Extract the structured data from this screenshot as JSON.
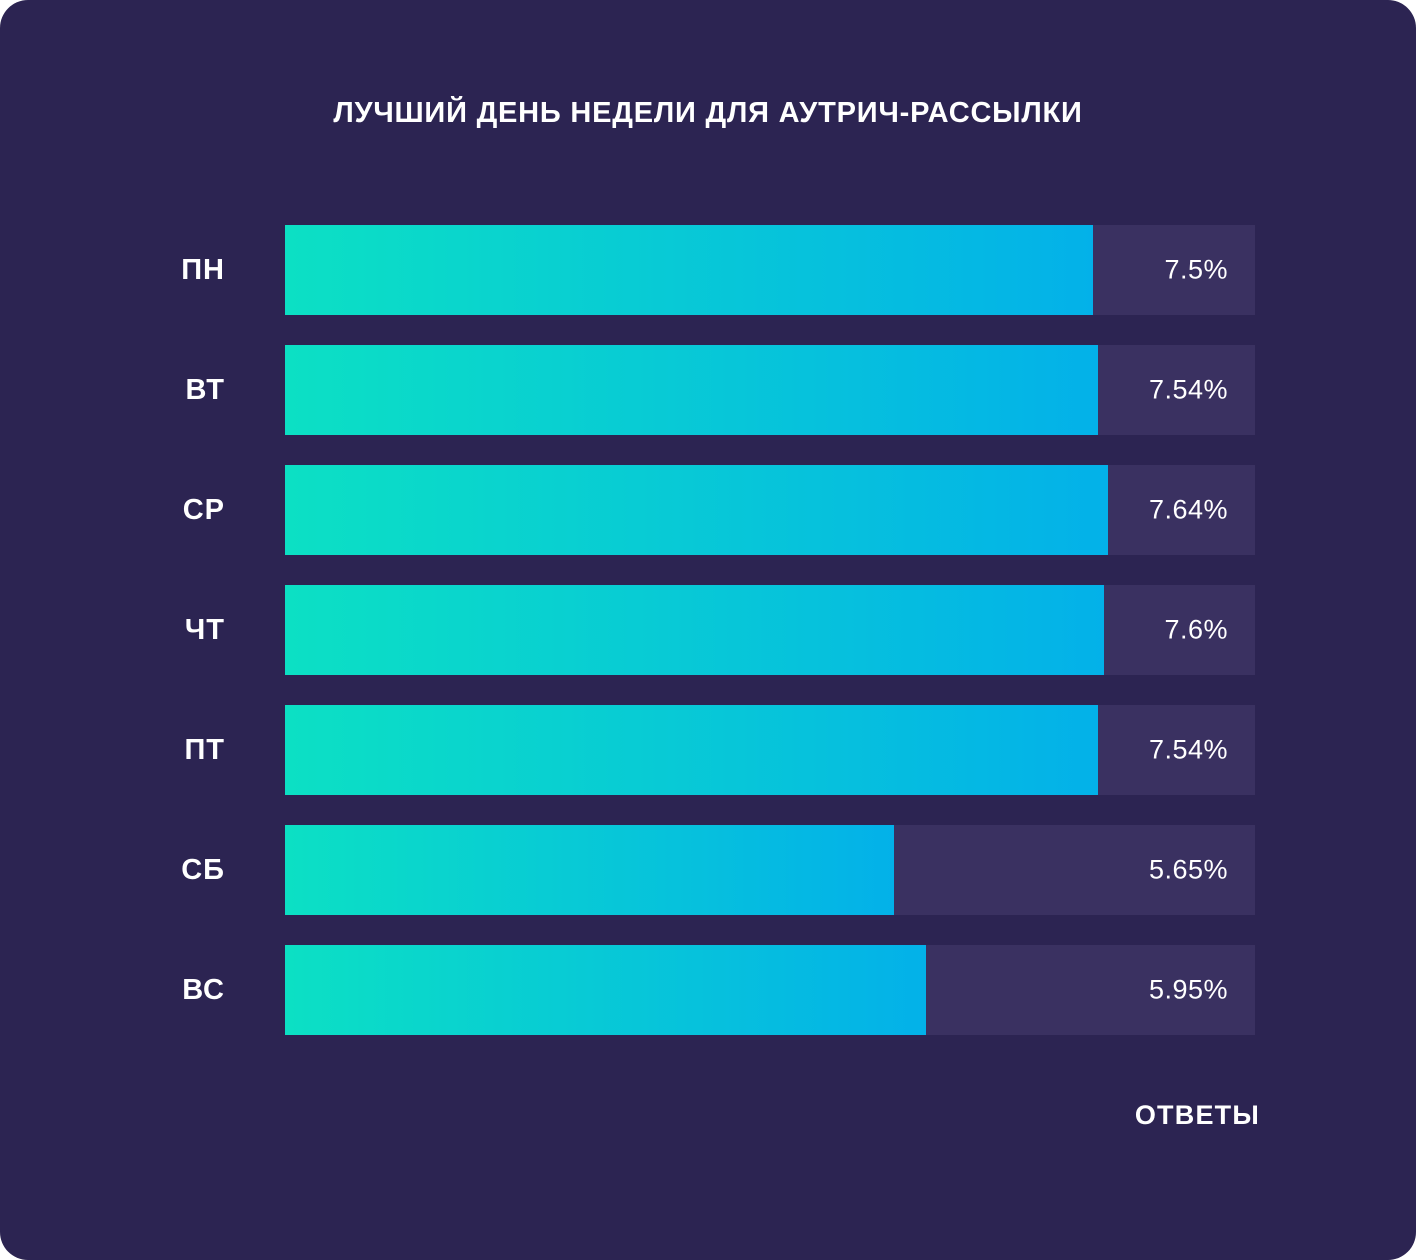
{
  "title": "ЛУЧШИЙ ДЕНЬ НЕДЕЛИ ДЛЯ АУТРИЧ-РАССЫЛКИ",
  "footer": {
    "label": "ОТВЕТЫ"
  },
  "colors": {
    "background": "#2c2452",
    "track": "#3a3161",
    "bar_gradient_start": "#0ce0c4",
    "bar_gradient_end": "#03b1e9",
    "text": "#ffffff"
  },
  "chart_data": {
    "type": "bar",
    "orientation": "horizontal",
    "title": "ЛУЧШИЙ ДЕНЬ НЕДЕЛИ ДЛЯ АУТРИЧ-РАССЫЛКИ",
    "categories": [
      "ПН",
      "ВТ",
      "СР",
      "ЧТ",
      "ПТ",
      "СБ",
      "ВС"
    ],
    "values": [
      7.5,
      7.54,
      7.64,
      7.6,
      7.54,
      5.65,
      5.95
    ],
    "value_labels": [
      "7.5%",
      "7.54%",
      "7.64%",
      "7.6%",
      "7.54%",
      "5.65%",
      "5.95%"
    ],
    "xlabel": "ОТВЕТЫ",
    "ylabel": "",
    "xlim": [
      0,
      9
    ],
    "grid": false,
    "legend": false
  }
}
